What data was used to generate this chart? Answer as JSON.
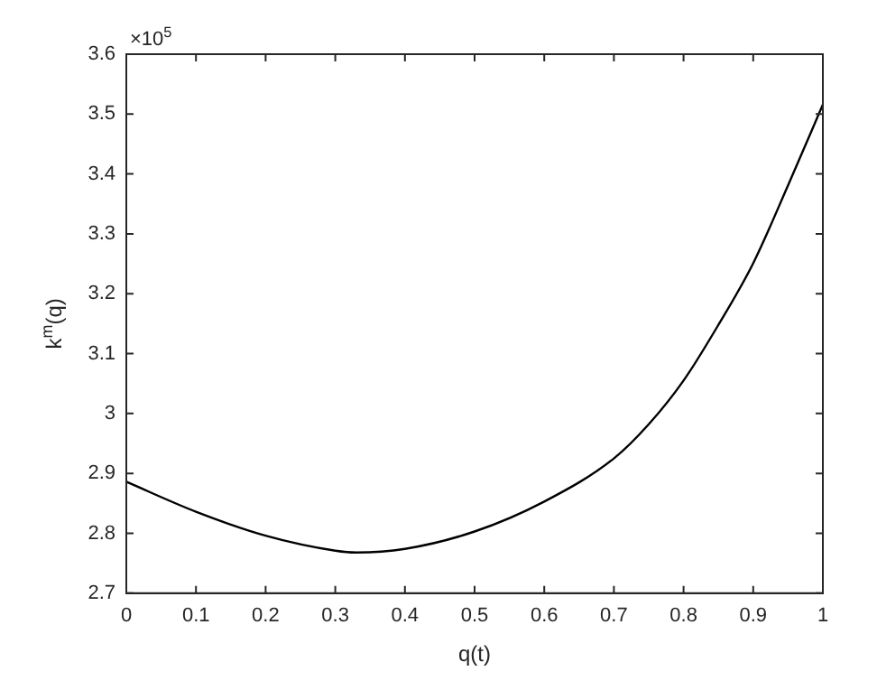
{
  "chart_data": {
    "type": "line",
    "xlabel": "q(t)",
    "ylabel": "k$^{m}$(q)",
    "annotations": [
      "×10$^{5}$"
    ],
    "x": [
      0,
      0.1,
      0.2,
      0.3,
      0.33,
      0.4,
      0.5,
      0.6,
      0.7,
      0.75,
      0.8,
      0.85,
      0.9,
      0.95,
      1
    ],
    "series": [
      {
        "color": "#000000",
        "values": [
          2.886,
          2.836,
          2.796,
          2.771,
          2.768,
          2.774,
          2.803,
          2.853,
          2.925,
          2.982,
          3.055,
          3.148,
          3.251,
          3.381,
          3.516
        ]
      }
    ],
    "xlim": [
      0,
      1
    ],
    "xticks": [
      0,
      0.1,
      0.2,
      0.3,
      0.4,
      0.5,
      0.6,
      0.7,
      0.8,
      0.9,
      1
    ],
    "ylim": [
      2.7,
      3.6
    ],
    "yticks": [
      2.7,
      2.8,
      2.9,
      3,
      3.1,
      3.2,
      3.3,
      3.4,
      3.5,
      3.6
    ],
    "grid": false,
    "legend": false,
    "marker": "none",
    "line_style": "solid"
  }
}
